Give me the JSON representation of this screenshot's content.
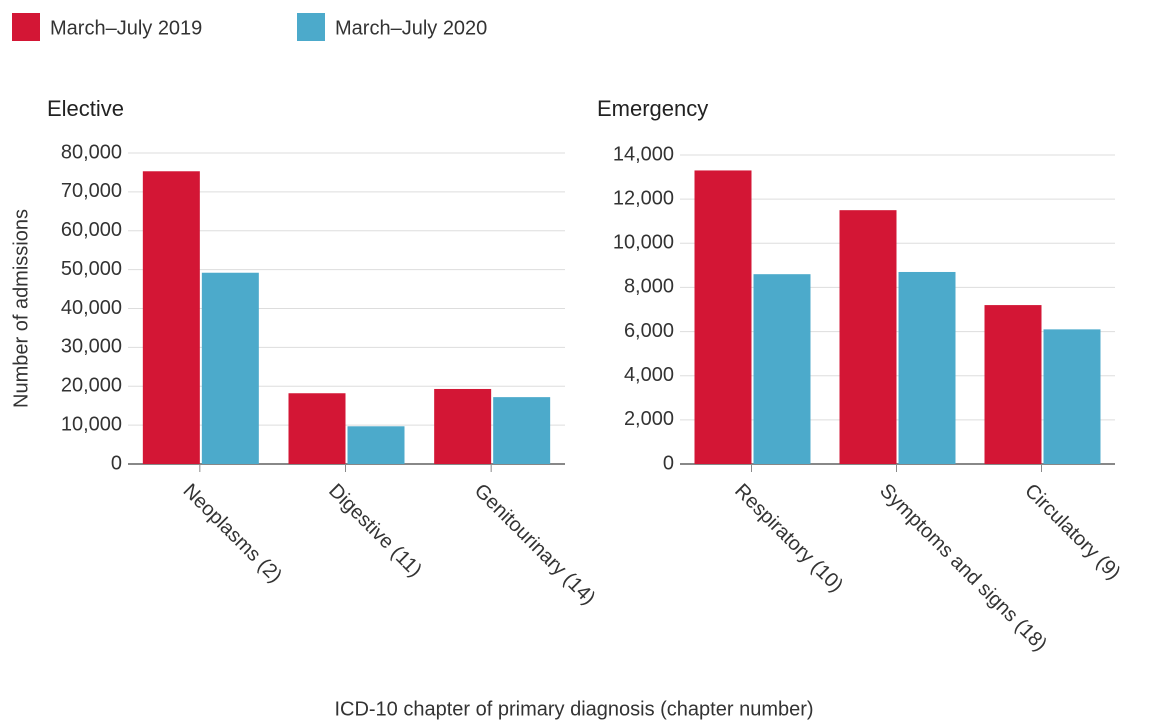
{
  "chart_data": [
    {
      "type": "bar",
      "title": "Elective",
      "ylabel": "Number of admissions",
      "xlabel": "ICD-10 chapter of primary diagnosis (chapter number)",
      "categories": [
        "Neoplasms (2)",
        "Digestive (11)",
        "Genitourinary (14)"
      ],
      "series": [
        {
          "name": "March–July 2019",
          "color": "#d31635",
          "values": [
            75300,
            18200,
            19300
          ]
        },
        {
          "name": "March–July 2020",
          "color": "#4caacb",
          "values": [
            49200,
            9700,
            17200
          ]
        }
      ],
      "ylim": [
        0,
        80000
      ],
      "yticks": [
        0,
        {
          "value": 10000,
          "label": "10,000"
        },
        {
          "value": 20000,
          "label": "20,000"
        },
        {
          "value": 30000,
          "label": "30,000"
        },
        {
          "value": 40000,
          "label": "40,000"
        },
        {
          "value": 50000,
          "label": "50,000"
        },
        {
          "value": 60000,
          "label": "60,000"
        },
        {
          "value": 70000,
          "label": "70,000"
        },
        {
          "value": 80000,
          "label": "80,000"
        }
      ],
      "grid": true
    },
    {
      "type": "bar",
      "title": "Emergency",
      "categories": [
        "Respiratory (10)",
        "Symptoms and signs (18)",
        "Circulatory (9)"
      ],
      "series": [
        {
          "color": "#d31635",
          "values": [
            13300,
            11500,
            7200
          ]
        },
        {
          "color": "#4caacb",
          "values": [
            8600,
            8700,
            6100
          ]
        }
      ],
      "ylim": [
        0,
        14000
      ],
      "yticks": [
        0,
        {
          "value": 2000,
          "label": "2,000"
        },
        {
          "value": 4000,
          "label": "4,000"
        },
        {
          "value": 6000,
          "label": "6,000"
        },
        {
          "value": 8000,
          "label": "8,000"
        },
        {
          "value": 10000,
          "label": "10,000"
        },
        {
          "value": 12000,
          "label": "12,000"
        },
        {
          "value": 14000,
          "label": "14,000"
        }
      ],
      "grid": true
    }
  ]
}
